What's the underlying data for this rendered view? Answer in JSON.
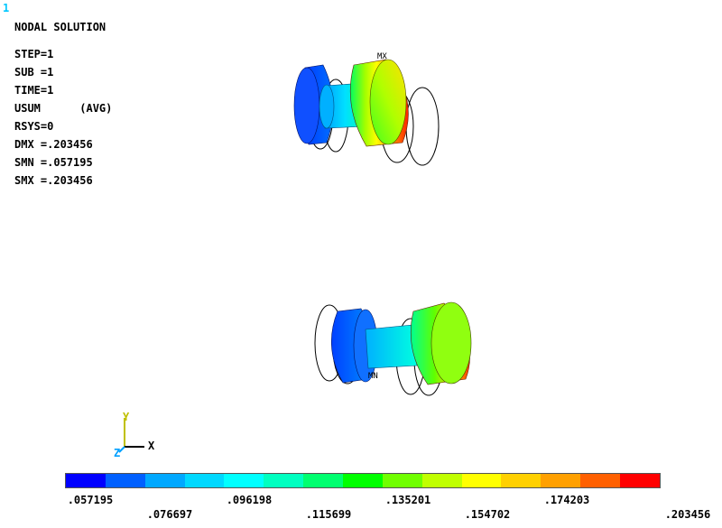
{
  "window_number": "1",
  "info": {
    "title": "NODAL SOLUTION",
    "step": "STEP=1",
    "sub": "SUB =1",
    "time": "TIME=1",
    "result": "USUM      (AVG)",
    "rsys": "RSYS=0",
    "dmx": "DMX =.203456",
    "smn": "SMN =.057195",
    "smx": "SMX =.203456"
  },
  "markers": {
    "max": "MX",
    "min": "MN"
  },
  "triad": {
    "y": "Y",
    "z": "Z",
    "x": "X"
  },
  "legend": {
    "colors": [
      "#0000ff",
      "#0060ff",
      "#00a8ff",
      "#00d8ff",
      "#00ffff",
      "#00ffc0",
      "#00ff70",
      "#00ff00",
      "#70ff00",
      "#c0ff00",
      "#ffff00",
      "#ffd000",
      "#ffa000",
      "#ff6000",
      "#ff0000"
    ],
    "values_top": [
      ".057195",
      ".096198",
      ".135201",
      ".174203"
    ],
    "values_bottom": [
      ".076697",
      ".115699",
      ".154702",
      ".203456"
    ]
  }
}
